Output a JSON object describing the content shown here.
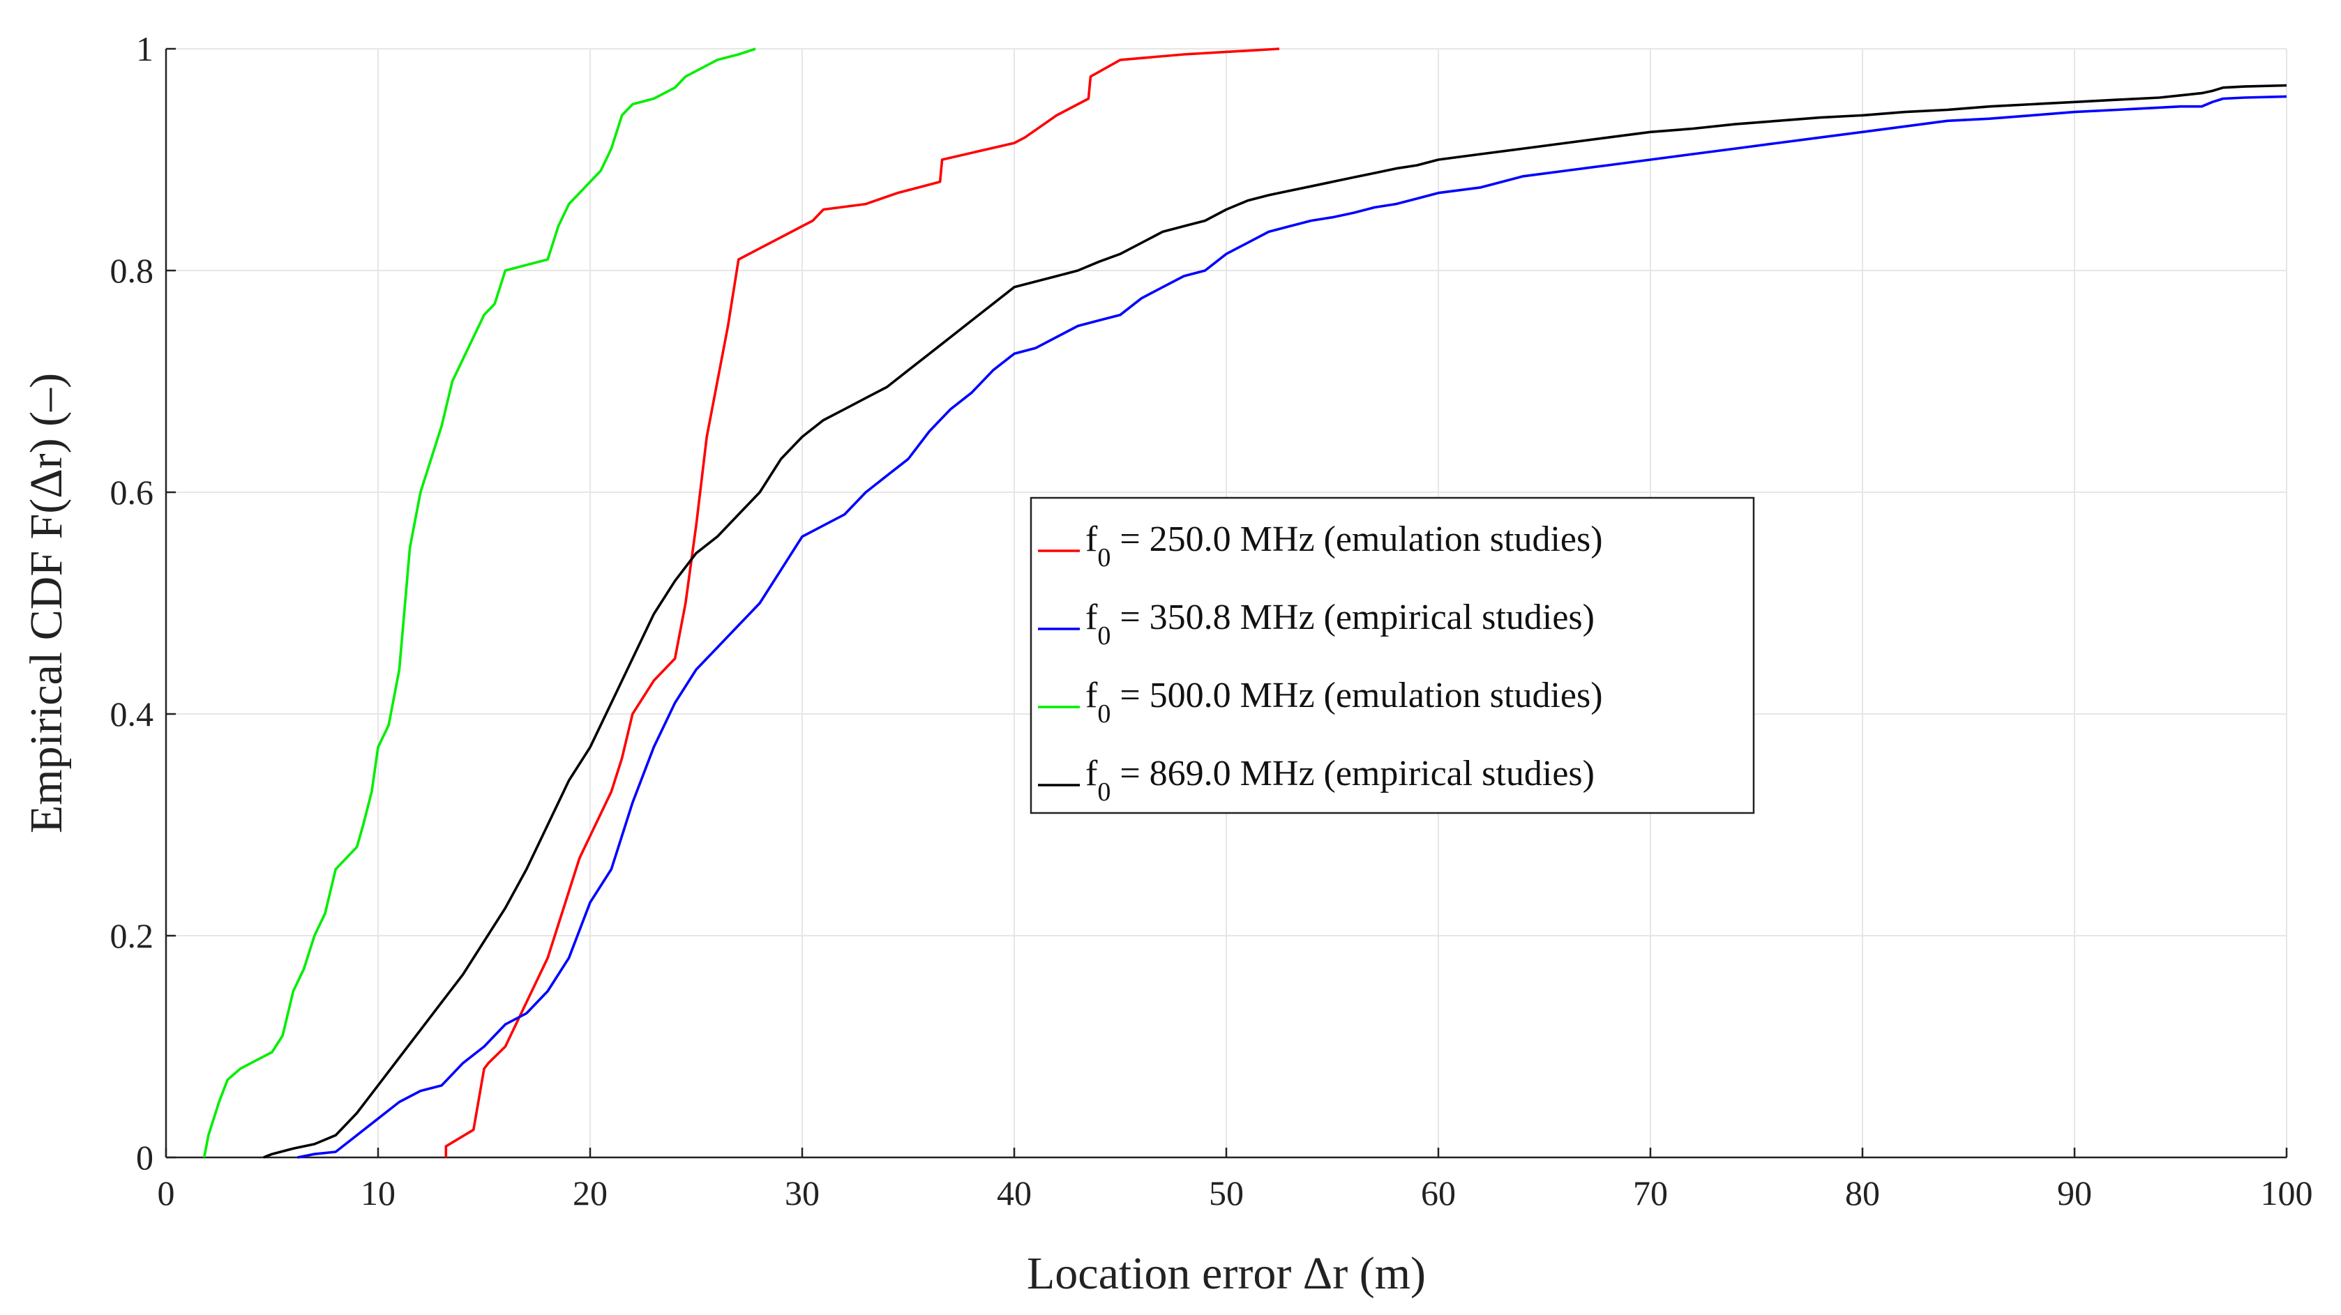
{
  "chart_data": {
    "type": "line",
    "title": "",
    "xlabel": "Location error  Δr (m)",
    "ylabel": "Empirical CDF  F(Δr) (–)",
    "xlim": [
      0,
      100
    ],
    "ylim": [
      0,
      1
    ],
    "grid": true,
    "legend_position": "center-right",
    "x_ticks": [
      "0",
      "10",
      "20",
      "30",
      "40",
      "50",
      "60",
      "70",
      "80",
      "90",
      "100"
    ],
    "y_ticks": [
      "0",
      "0.2",
      "0.4",
      "0.6",
      "0.8",
      "1"
    ],
    "series": [
      {
        "label_main": "f",
        "label_sub": "0",
        "label_rest": " = 250.0 MHz (emulation studies)",
        "color": "#ff0000",
        "x": [
          13.2,
          13.2,
          14.5,
          15,
          15.2,
          16,
          17,
          17.5,
          18,
          18.5,
          19,
          19.5,
          20,
          20.5,
          21,
          21.5,
          22,
          23,
          24,
          24.5,
          25,
          25.5,
          26,
          26.5,
          27,
          28,
          30,
          30.5,
          31,
          33,
          34.5,
          36.5,
          36.6,
          40,
          40.5,
          42,
          43.5,
          43.6,
          45,
          48,
          52.5
        ],
        "y": [
          0.0,
          0.01,
          0.025,
          0.08,
          0.085,
          0.1,
          0.14,
          0.16,
          0.18,
          0.21,
          0.24,
          0.27,
          0.29,
          0.31,
          0.33,
          0.36,
          0.4,
          0.43,
          0.45,
          0.5,
          0.57,
          0.65,
          0.7,
          0.75,
          0.81,
          0.82,
          0.84,
          0.845,
          0.855,
          0.86,
          0.87,
          0.88,
          0.9,
          0.915,
          0.92,
          0.94,
          0.955,
          0.975,
          0.99,
          0.995,
          1.0
        ]
      },
      {
        "label_main": "f",
        "label_sub": "0",
        "label_rest": " = 350.8 MHz (empirical studies)",
        "color": "#0000ff",
        "x": [
          6.2,
          7,
          8,
          9,
          10,
          11,
          12,
          13,
          14,
          15,
          16,
          17,
          18,
          19,
          20,
          21,
          22,
          23,
          24,
          25,
          26,
          27,
          28,
          29,
          30,
          31,
          32,
          33,
          34,
          35,
          36,
          37,
          38,
          39,
          40,
          41,
          42,
          43,
          44,
          45,
          46,
          47,
          48,
          49,
          50,
          51,
          52,
          53,
          54,
          55,
          56,
          57,
          58,
          59,
          60,
          62,
          64,
          66,
          68,
          70,
          72,
          74,
          76,
          78,
          80,
          82,
          84,
          86,
          88,
          90,
          92,
          94,
          95,
          96,
          96.5,
          97,
          98,
          100
        ],
        "y": [
          0.0,
          0.003,
          0.005,
          0.02,
          0.035,
          0.05,
          0.06,
          0.065,
          0.085,
          0.1,
          0.12,
          0.13,
          0.15,
          0.18,
          0.23,
          0.26,
          0.32,
          0.37,
          0.41,
          0.44,
          0.46,
          0.48,
          0.5,
          0.53,
          0.56,
          0.57,
          0.58,
          0.6,
          0.615,
          0.63,
          0.655,
          0.675,
          0.69,
          0.71,
          0.725,
          0.73,
          0.74,
          0.75,
          0.755,
          0.76,
          0.775,
          0.785,
          0.795,
          0.8,
          0.815,
          0.825,
          0.835,
          0.84,
          0.845,
          0.848,
          0.852,
          0.857,
          0.86,
          0.865,
          0.87,
          0.875,
          0.885,
          0.89,
          0.895,
          0.9,
          0.905,
          0.91,
          0.915,
          0.92,
          0.925,
          0.93,
          0.935,
          0.937,
          0.94,
          0.943,
          0.945,
          0.947,
          0.948,
          0.948,
          0.952,
          0.955,
          0.956,
          0.957
        ]
      },
      {
        "label_main": "f",
        "label_sub": "0",
        "label_rest": " = 500.0 MHz (emulation studies)",
        "color": "#00ee00",
        "x": [
          1.8,
          2,
          2.5,
          2.9,
          3.5,
          4,
          5,
          5.5,
          6,
          6.5,
          7,
          7.5,
          8,
          8.5,
          9,
          9.3,
          9.7,
          10,
          10.5,
          11,
          11.5,
          12,
          12.5,
          13,
          13.5,
          14,
          14.5,
          15,
          15.5,
          16,
          17,
          18,
          18.5,
          19,
          19.5,
          20,
          20.5,
          21,
          21.5,
          22,
          23,
          24,
          24.5,
          25,
          26,
          27,
          27.8
        ],
        "y": [
          0.0,
          0.02,
          0.05,
          0.07,
          0.08,
          0.085,
          0.095,
          0.11,
          0.15,
          0.17,
          0.2,
          0.22,
          0.26,
          0.27,
          0.28,
          0.3,
          0.33,
          0.37,
          0.39,
          0.44,
          0.55,
          0.6,
          0.63,
          0.66,
          0.7,
          0.72,
          0.74,
          0.76,
          0.77,
          0.8,
          0.805,
          0.81,
          0.84,
          0.86,
          0.87,
          0.88,
          0.89,
          0.91,
          0.94,
          0.95,
          0.955,
          0.965,
          0.975,
          0.98,
          0.99,
          0.995,
          1.0
        ]
      },
      {
        "label_main": "f",
        "label_sub": "0",
        "label_rest": " = 869.0 MHz (empirical studies)",
        "color": "#000000",
        "x": [
          4.6,
          5,
          6,
          7,
          8,
          9,
          10,
          11,
          12,
          13,
          14,
          15,
          16,
          17,
          18,
          19,
          20,
          21,
          22,
          23,
          24,
          25,
          26,
          27,
          28,
          29,
          30,
          31,
          32,
          33,
          34,
          35,
          36,
          37,
          38,
          39,
          40,
          41,
          42,
          43,
          44,
          45,
          46,
          47,
          48,
          49,
          50,
          51,
          52,
          53,
          54,
          55,
          56,
          57,
          58,
          59,
          60,
          62,
          64,
          66,
          68,
          70,
          72,
          74,
          76,
          78,
          80,
          82,
          84,
          86,
          88,
          90,
          92,
          94,
          95,
          96,
          96.5,
          97,
          98,
          100
        ],
        "y": [
          0.0,
          0.003,
          0.008,
          0.012,
          0.02,
          0.04,
          0.065,
          0.09,
          0.115,
          0.14,
          0.165,
          0.195,
          0.225,
          0.26,
          0.3,
          0.34,
          0.37,
          0.41,
          0.45,
          0.49,
          0.52,
          0.545,
          0.56,
          0.58,
          0.6,
          0.63,
          0.65,
          0.665,
          0.675,
          0.685,
          0.695,
          0.71,
          0.725,
          0.74,
          0.755,
          0.77,
          0.785,
          0.79,
          0.795,
          0.8,
          0.808,
          0.815,
          0.825,
          0.835,
          0.84,
          0.845,
          0.855,
          0.863,
          0.868,
          0.872,
          0.876,
          0.88,
          0.884,
          0.888,
          0.892,
          0.895,
          0.9,
          0.905,
          0.91,
          0.915,
          0.92,
          0.925,
          0.928,
          0.932,
          0.935,
          0.938,
          0.94,
          0.943,
          0.945,
          0.948,
          0.95,
          0.952,
          0.954,
          0.956,
          0.958,
          0.96,
          0.962,
          0.965,
          0.966,
          0.967
        ]
      }
    ]
  }
}
